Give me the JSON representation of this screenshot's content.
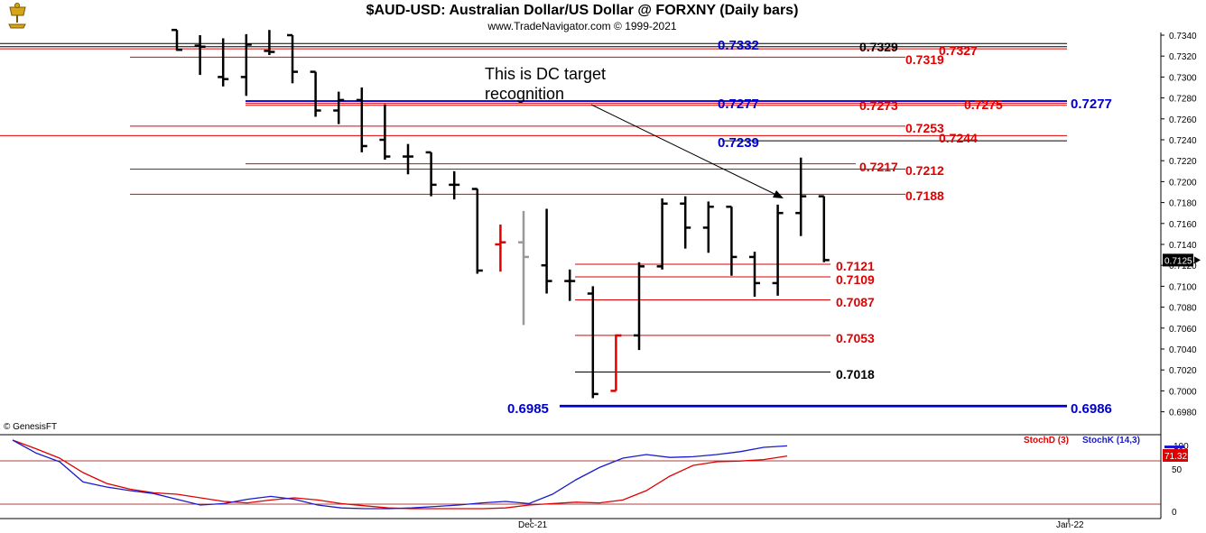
{
  "title": "$AUD-USD:  Australian Dollar/US Dollar @ FORXNY  (Daily bars)",
  "subtitle": "www.TradeNavigator.com © 1999-2021",
  "copyright": "© GenesisFT",
  "logo_icon": "trading-logo-icon",
  "annotation": {
    "line1": "This is DC target",
    "line2": "recognition"
  },
  "colors": {
    "red": "#e00000",
    "blue": "#0000cc",
    "black": "#000000",
    "gray": "#999999",
    "stoch_k": "#1a1acc",
    "stoch_d": "#e00000"
  },
  "chart_data": [
    {
      "type": "ohlc",
      "title": "$AUD-USD:  Australian Dollar/US Dollar @ FORXNY  (Daily bars)",
      "ylim": [
        0.697,
        0.7345
      ],
      "y_ticks": [
        "0.7340",
        "0.7320",
        "0.7300",
        "0.7280",
        "0.7260",
        "0.7240",
        "0.7220",
        "0.7200",
        "0.7180",
        "0.7160",
        "0.7140",
        "0.7120",
        "0.7100",
        "0.7080",
        "0.7060",
        "0.7040",
        "0.7020",
        "0.7000",
        "0.6980"
      ],
      "x_labels": [
        "Dec-21",
        "Jan-22"
      ],
      "last_price": "0.7125",
      "bars": [
        {
          "o": 0.7345,
          "h": 0.7345,
          "l": 0.7325,
          "c": 0.7326,
          "color": "black"
        },
        {
          "o": 0.733,
          "h": 0.734,
          "l": 0.7302,
          "c": 0.7329,
          "color": "black"
        },
        {
          "o": 0.73,
          "h": 0.7337,
          "l": 0.7291,
          "c": 0.7298,
          "color": "black"
        },
        {
          "o": 0.73,
          "h": 0.7341,
          "l": 0.7282,
          "c": 0.7331,
          "color": "black"
        },
        {
          "o": 0.7325,
          "h": 0.7345,
          "l": 0.7321,
          "c": 0.7324,
          "color": "black"
        },
        {
          "o": 0.734,
          "h": 0.734,
          "l": 0.7294,
          "c": 0.7305,
          "color": "black"
        },
        {
          "o": 0.7305,
          "h": 0.7305,
          "l": 0.7262,
          "c": 0.7268,
          "color": "black"
        },
        {
          "o": 0.7268,
          "h": 0.7286,
          "l": 0.7255,
          "c": 0.7278,
          "color": "black"
        },
        {
          "o": 0.7278,
          "h": 0.729,
          "l": 0.7228,
          "c": 0.7234,
          "color": "black"
        },
        {
          "o": 0.724,
          "h": 0.7274,
          "l": 0.7221,
          "c": 0.7224,
          "color": "black"
        },
        {
          "o": 0.7224,
          "h": 0.7236,
          "l": 0.7207,
          "c": 0.7224,
          "color": "black"
        },
        {
          "o": 0.7228,
          "h": 0.7228,
          "l": 0.7186,
          "c": 0.7197,
          "color": "black"
        },
        {
          "o": 0.7197,
          "h": 0.721,
          "l": 0.7183,
          "c": 0.7197,
          "color": "black"
        },
        {
          "o": 0.7193,
          "h": 0.7193,
          "l": 0.7112,
          "c": 0.7115,
          "color": "black"
        },
        {
          "o": 0.714,
          "h": 0.7159,
          "l": 0.7114,
          "c": 0.7142,
          "color": "red"
        },
        {
          "o": 0.7142,
          "h": 0.7172,
          "l": 0.7063,
          "c": 0.7128,
          "color": "gray"
        },
        {
          "o": 0.712,
          "h": 0.7174,
          "l": 0.7093,
          "c": 0.7105,
          "color": "black"
        },
        {
          "o": 0.7105,
          "h": 0.7116,
          "l": 0.7086,
          "c": 0.7105,
          "color": "black"
        },
        {
          "o": 0.7093,
          "h": 0.71,
          "l": 0.6993,
          "c": 0.6997,
          "color": "black"
        },
        {
          "o": 0.7,
          "h": 0.7054,
          "l": 0.7,
          "c": 0.7053,
          "color": "red"
        },
        {
          "o": 0.7053,
          "h": 0.7123,
          "l": 0.7039,
          "c": 0.7119,
          "color": "black"
        },
        {
          "o": 0.7119,
          "h": 0.7184,
          "l": 0.7116,
          "c": 0.7179,
          "color": "black"
        },
        {
          "o": 0.7179,
          "h": 0.7186,
          "l": 0.7136,
          "c": 0.7156,
          "color": "black"
        },
        {
          "o": 0.7156,
          "h": 0.7181,
          "l": 0.7132,
          "c": 0.7176,
          "color": "black"
        },
        {
          "o": 0.7176,
          "h": 0.7176,
          "l": 0.711,
          "c": 0.7128,
          "color": "black"
        },
        {
          "o": 0.7128,
          "h": 0.7133,
          "l": 0.709,
          "c": 0.7103,
          "color": "black"
        },
        {
          "o": 0.7103,
          "h": 0.7178,
          "l": 0.7091,
          "c": 0.717,
          "color": "black"
        },
        {
          "o": 0.717,
          "h": 0.7223,
          "l": 0.7148,
          "c": 0.7186,
          "color": "black"
        },
        {
          "o": 0.7186,
          "h": 0.7186,
          "l": 0.7123,
          "c": 0.7125,
          "color": "black"
        }
      ],
      "levels": [
        {
          "y": 0.7332,
          "xs": 0,
          "xe": 24,
          "label": "0.7332",
          "color": "blue",
          "line": "black"
        },
        {
          "y": 0.7329,
          "xs": 0,
          "xe": 24,
          "label": "0.7329",
          "color": "black",
          "line": "black"
        },
        {
          "y": 0.7327,
          "xs": 0,
          "xe": 37,
          "label": "0.7327",
          "color": "red",
          "line": "red"
        },
        {
          "y": 0.7319,
          "xs": 0,
          "xe": 24,
          "label": "0.7319",
          "color": "red",
          "line": "red"
        },
        {
          "y": 0.7277,
          "xs": 0,
          "xe": 37,
          "label": "0.7277",
          "color": "blue",
          "line": "blue"
        },
        {
          "y": 0.7277,
          "xs": 0,
          "xe": 37,
          "label": "0.7277",
          "color": "blue",
          "line": "blue"
        },
        {
          "y": 0.7275,
          "xs": 0,
          "xe": 24,
          "label": "0.7275",
          "color": "red",
          "line": "red"
        },
        {
          "y": 0.7273,
          "xs": 0,
          "xe": 24,
          "label": "0.7273",
          "color": "red",
          "line": "red"
        },
        {
          "y": 0.7253,
          "xs": 0,
          "xe": 24,
          "label": "0.7253",
          "color": "red",
          "line": "red"
        },
        {
          "y": 0.7244,
          "xs": 0,
          "xe": 37,
          "label": "0.7244",
          "color": "red",
          "line": "red"
        },
        {
          "y": 0.7239,
          "xs": 0,
          "xe": 37,
          "label": "0.7239",
          "color": "blue",
          "line": "black"
        },
        {
          "y": 0.7217,
          "xs": 0,
          "xe": 24,
          "label": "0.7217",
          "color": "red",
          "line": "red"
        },
        {
          "y": 0.7212,
          "xs": 0,
          "xe": 24,
          "label": "0.7212",
          "color": "red",
          "line": "red"
        },
        {
          "y": 0.7188,
          "xs": 0,
          "xe": 24,
          "label": "0.7188",
          "color": "red",
          "line": "red"
        },
        {
          "y": 0.7121,
          "xs": 19,
          "xe": 28,
          "label": "0.7121",
          "color": "red",
          "line": "red"
        },
        {
          "y": 0.7109,
          "xs": 19,
          "xe": 28,
          "label": "0.7109",
          "color": "red",
          "line": "red"
        },
        {
          "y": 0.7087,
          "xs": 19,
          "xe": 28,
          "label": "0.7087",
          "color": "red",
          "line": "red"
        },
        {
          "y": 0.7053,
          "xs": 19,
          "xe": 28,
          "label": "0.7053",
          "color": "red",
          "line": "red"
        },
        {
          "y": 0.7018,
          "xs": 19,
          "xe": 28,
          "label": "0.7018",
          "color": "black",
          "line": "black"
        },
        {
          "y": 0.6985,
          "xs": 19,
          "xe": 37,
          "label": "0.6985",
          "color": "blue",
          "line": "blue"
        },
        {
          "y": 0.6986,
          "xs": 19,
          "xe": 37,
          "label": "0.6986",
          "color": "blue",
          "line": "blue"
        }
      ]
    },
    {
      "type": "line",
      "ylim": [
        0,
        100
      ],
      "y_ticks": [
        "100",
        "50",
        "0"
      ],
      "current_value": "71.32",
      "series": [
        {
          "name": "StochD (3)",
          "color": "red",
          "values": [
            100,
            88,
            75,
            55,
            40,
            32,
            27,
            25,
            20,
            15,
            13,
            17,
            20,
            17,
            12,
            9,
            6,
            5,
            5,
            5,
            5,
            6,
            10,
            12,
            14,
            13,
            17,
            30,
            50,
            65,
            70,
            71,
            73,
            78
          ]
        },
        {
          "name": "StochK (14,3)",
          "color": "blue",
          "values": [
            100,
            82,
            70,
            42,
            35,
            30,
            26,
            18,
            10,
            12,
            18,
            22,
            18,
            10,
            6,
            5,
            5,
            6,
            8,
            10,
            13,
            15,
            12,
            25,
            45,
            62,
            75,
            80,
            76,
            77,
            80,
            84,
            90,
            92
          ]
        }
      ],
      "reference_lines": [
        80,
        20
      ]
    }
  ]
}
